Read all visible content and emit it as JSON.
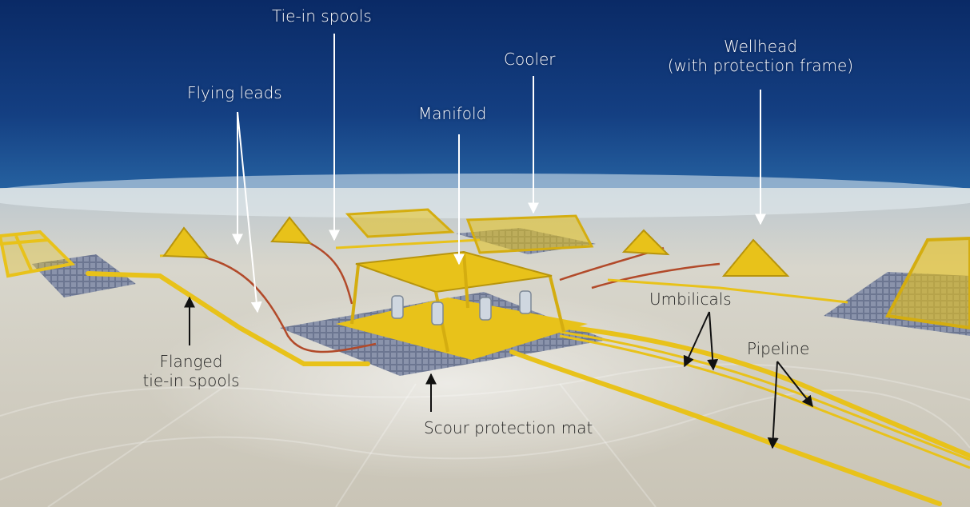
{
  "colors": {
    "water_top": "#0a2a66",
    "water_mid": "#1a4f95",
    "seabed": "#d3d1c6",
    "equipment_yellow": "#e8c21a",
    "mat_grey": "#6c7691",
    "umbilical_red": "#b24a2a",
    "label_light": "#ffffff",
    "label_dark": "#1f1f1f"
  },
  "labels": {
    "tie_in_spools": "Tie-in spools",
    "cooler": "Cooler",
    "wellhead_line1": "Wellhead",
    "wellhead_line2": "(with protection frame)",
    "flying_leads": "Flying leads",
    "manifold": "Manifold",
    "umbilicals": "Umbilicals",
    "pipeline": "Pipeline",
    "flanged_line1": "Flanged",
    "flanged_line2": "tie-in spools",
    "scour_mat": "Scour protection mat"
  }
}
